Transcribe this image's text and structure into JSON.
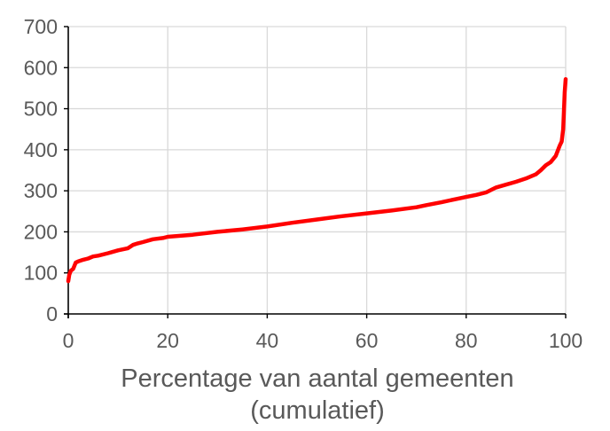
{
  "chart_data": {
    "type": "line",
    "title": "",
    "xlabel_lines": [
      "Percentage van aantal gemeenten",
      "(cumulatief)"
    ],
    "ylabel": "",
    "xlim": [
      0,
      100
    ],
    "ylim": [
      0,
      700
    ],
    "x_ticks": [
      0,
      20,
      40,
      60,
      80,
      100
    ],
    "y_ticks": [
      0,
      100,
      200,
      300,
      400,
      500,
      600,
      700
    ],
    "grid": true,
    "legend": "none",
    "series": [
      {
        "color": "#ff0000",
        "x": [
          0,
          0.2,
          0.5,
          1,
          1.5,
          2,
          3,
          4,
          5,
          6,
          8,
          10,
          12,
          13,
          14,
          15,
          17,
          19,
          20,
          25,
          30,
          35,
          40,
          45,
          50,
          55,
          60,
          65,
          70,
          72,
          75,
          78,
          80,
          82,
          84,
          86,
          88,
          90,
          92,
          94,
          95,
          96,
          97,
          98,
          98.8,
          99.2,
          99.5,
          99.8,
          100
        ],
        "values": [
          80,
          95,
          105,
          110,
          125,
          128,
          132,
          135,
          140,
          142,
          148,
          155,
          160,
          168,
          172,
          175,
          182,
          185,
          188,
          193,
          200,
          206,
          213,
          222,
          230,
          238,
          245,
          252,
          260,
          265,
          272,
          280,
          285,
          290,
          296,
          308,
          315,
          322,
          330,
          340,
          350,
          362,
          370,
          385,
          410,
          420,
          450,
          540,
          572
        ]
      }
    ]
  }
}
